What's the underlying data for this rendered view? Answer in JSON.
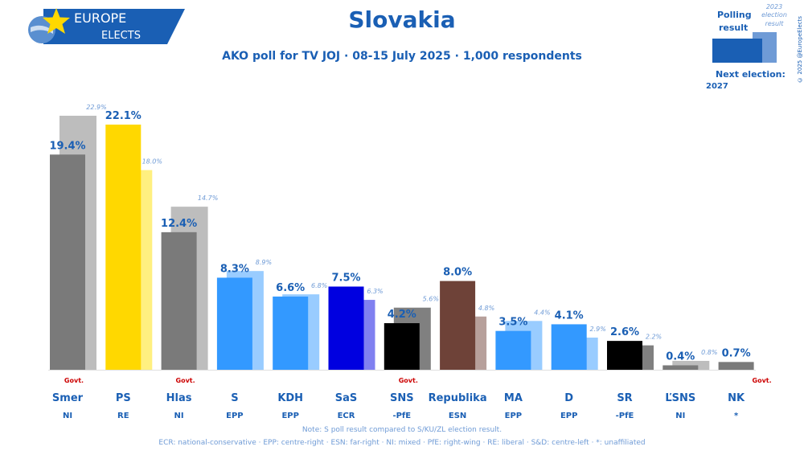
{
  "header": {
    "logo_line1": "EUROPE",
    "logo_line2": "ELECTS",
    "title": "Slovakia",
    "subtitle": "AKO poll for TV JOJ · 08-15 July 2025 · 1,000 respondents"
  },
  "legend": {
    "polling_label_1": "Polling",
    "polling_label_2": "result",
    "election_label_1": "2023",
    "election_label_2": "election",
    "election_label_3": "result",
    "next_election_label": "Next election:",
    "next_election_year": "2027",
    "copyright": "© 2025 @EuropeElects"
  },
  "chart_data": {
    "type": "bar",
    "title": "Slovakia",
    "ylim": [
      0,
      25
    ],
    "categories": [
      "Smer",
      "PS",
      "Hlas",
      "S",
      "KDH",
      "SaS",
      "SNS",
      "Republika",
      "MA",
      "D",
      "SR",
      "ĽSNS",
      "NK"
    ],
    "groups": [
      "NI",
      "RE",
      "NI",
      "EPP",
      "EPP",
      "ECR",
      "-PfE",
      "ESN",
      "EPP",
      "EPP",
      "-PfE",
      "NI",
      "*"
    ],
    "series": [
      {
        "name": "Polling result",
        "values": [
          19.4,
          22.1,
          12.4,
          8.3,
          6.6,
          7.5,
          4.2,
          8.0,
          3.5,
          4.1,
          2.6,
          0.4,
          0.7
        ]
      },
      {
        "name": "2023 election result",
        "values": [
          22.9,
          18.0,
          14.7,
          8.9,
          6.8,
          6.3,
          5.6,
          4.8,
          4.4,
          2.9,
          2.2,
          0.8,
          null
        ]
      }
    ],
    "poll_labels": [
      "19.4%",
      "22.1%",
      "12.4%",
      "8.3%",
      "6.6%",
      "7.5%",
      "4.2%",
      "8.0%",
      "3.5%",
      "4.1%",
      "2.6%",
      "0.4%",
      "0.7%"
    ],
    "election_labels": [
      "22.9%",
      "18.0%",
      "14.7%",
      "8.9%",
      "6.8%",
      "6.3%",
      "5.6%",
      "4.8%",
      "4.4%",
      "2.9%",
      "2.2%",
      "0.8%",
      ""
    ],
    "govt_flags": [
      "Govt.",
      "",
      "Govt.",
      "",
      "",
      "",
      "Govt.",
      "",
      "",
      "",
      "",
      "",
      "Govt."
    ],
    "poll_colors": [
      "#7a7a7a",
      "#ffd800",
      "#7a7a7a",
      "#3399ff",
      "#3399ff",
      "#0000e0",
      "#000000",
      "#6e4238",
      "#3399ff",
      "#3399ff",
      "#000000",
      "#7a7a7a",
      "#7a7a7a"
    ],
    "election_colors": [
      "#bdbdbd",
      "#fff080",
      "#bdbdbd",
      "#99ccff",
      "#99ccff",
      "#8080f0",
      "#808080",
      "#b7a09b",
      "#99ccff",
      "#99ccff",
      "#808080",
      "#bdbdbd",
      "#bdbdbd"
    ]
  },
  "notes": {
    "note": "Note: S poll result compared to S/KU/ZL election result.",
    "footer": "ECR: national-conservative · EPP: centre-right · ESN: far-right · NI: mixed · PfE: right-wing · RE: liberal · S&D: centre-left · *: unaffiliated"
  },
  "colors": {
    "brand_blue": "#1a5fb4",
    "light_blue": "#6f9bd6",
    "govt_red": "#cc0000"
  }
}
